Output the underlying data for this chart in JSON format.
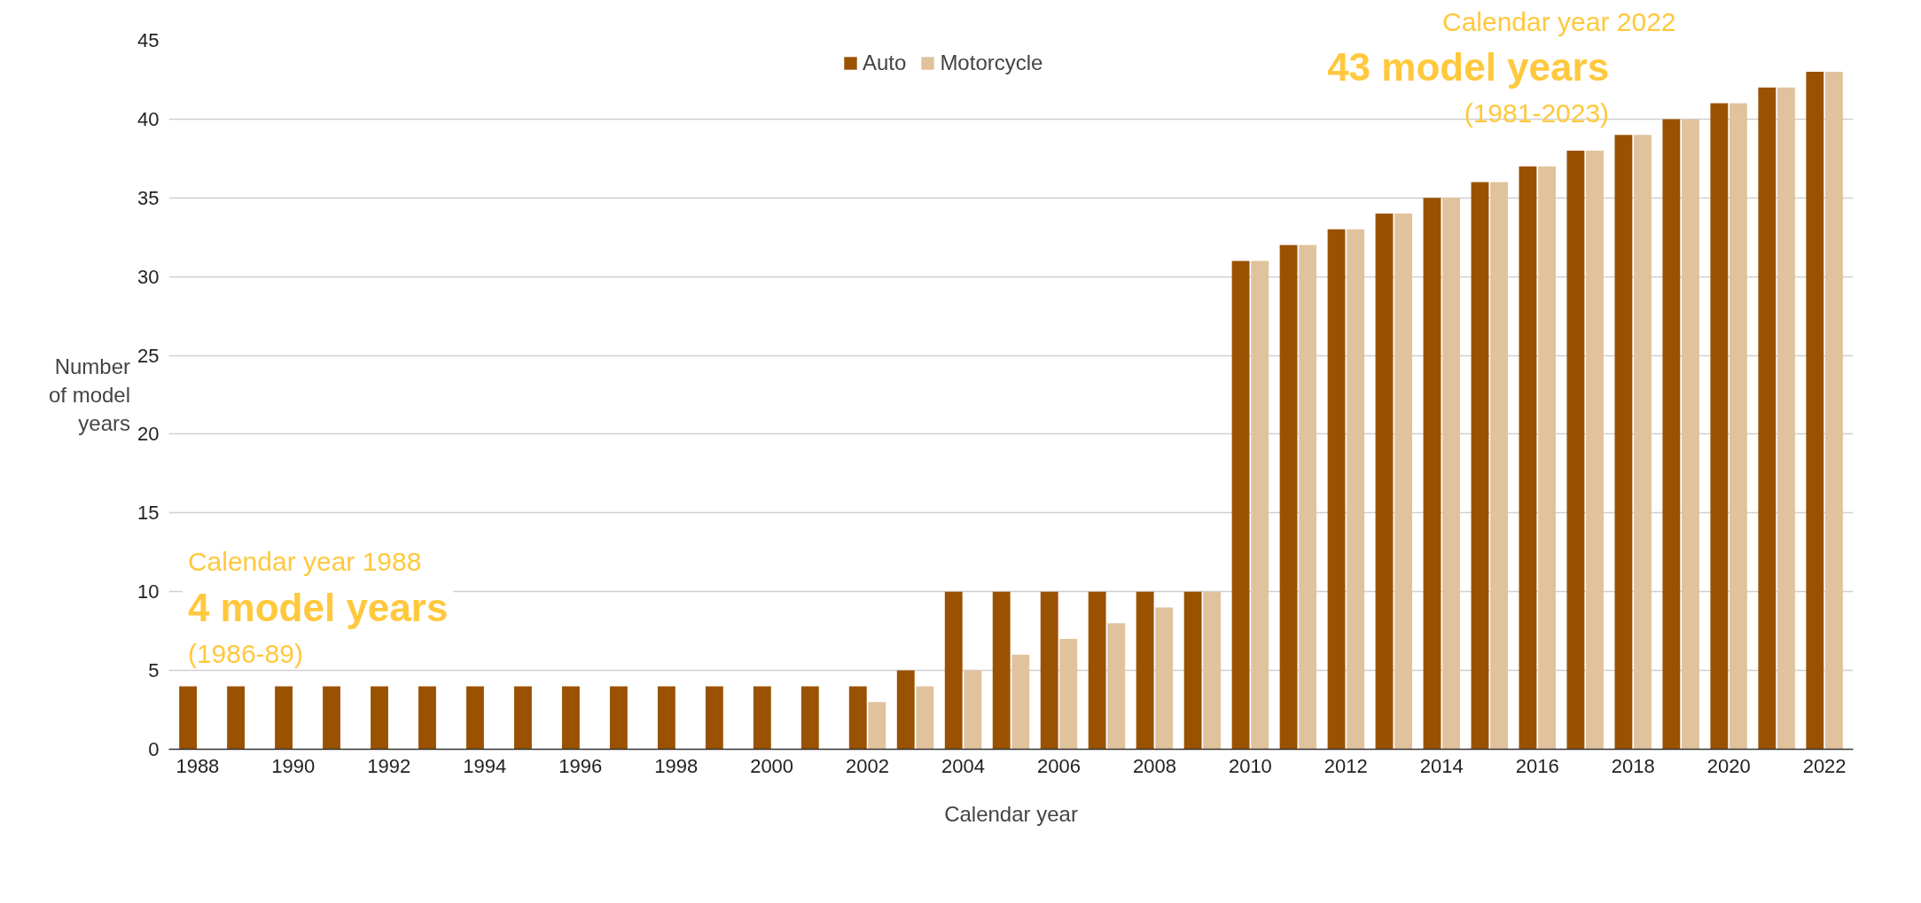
{
  "chart_data": {
    "type": "bar",
    "xlabel": "Calendar year",
    "ylabel": "Number\nof model\nyears",
    "categories": [
      "1988",
      null,
      "1990",
      null,
      "1992",
      null,
      "1994",
      null,
      "1996",
      null,
      "1998",
      null,
      "2000",
      null,
      "2002",
      null,
      "2004",
      null,
      "2006",
      null,
      "2008",
      null,
      "2010",
      null,
      "2012",
      null,
      "2014",
      null,
      "2016",
      null,
      "2018",
      null,
      "2020",
      null,
      "2022"
    ],
    "series": [
      {
        "name": "Auto",
        "color": "#9a5200",
        "values": [
          4,
          4,
          4,
          4,
          4,
          4,
          4,
          4,
          4,
          4,
          4,
          4,
          4,
          4,
          4,
          5,
          10,
          10,
          10,
          10,
          10,
          10,
          31,
          32,
          33,
          34,
          35,
          36,
          37,
          38,
          39,
          40,
          41,
          42,
          43
        ]
      },
      {
        "name": "Motorcycle",
        "color": "#e0c29d",
        "values": [
          null,
          null,
          null,
          null,
          null,
          null,
          null,
          null,
          null,
          null,
          null,
          null,
          null,
          null,
          3,
          4,
          5,
          6,
          7,
          8,
          9,
          10,
          31,
          32,
          33,
          34,
          35,
          36,
          37,
          38,
          39,
          40,
          41,
          42,
          43
        ]
      }
    ],
    "ylim": [
      0,
      45
    ],
    "yticks": [
      0,
      5,
      10,
      15,
      20,
      25,
      30,
      35,
      40,
      45
    ],
    "grid": "y",
    "legend": "top",
    "annotations": [
      "Calendar year 1988",
      "4 model years",
      "(1986-89)",
      "Calendar year 2022",
      "43 model years",
      "(1981-2023)"
    ]
  }
}
